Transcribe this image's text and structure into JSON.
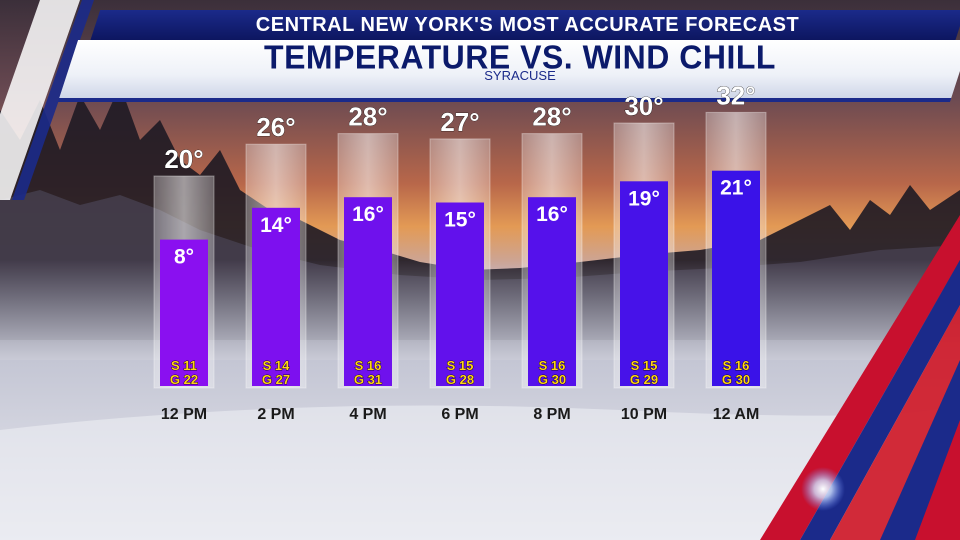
{
  "header": {
    "tagline": "CENTRAL NEW YORK'S MOST ACCURATE FORECAST",
    "title": "TEMPERATURE VS. WIND CHILL",
    "location": "SYRACUSE"
  },
  "colors": {
    "banner_blue": "#1b2a8a",
    "title_blue": "#0b1a6b",
    "windchill_purple": "#8a10f0",
    "windchill_blue": "#3a12e8",
    "wind_text_yellow": "#ffd21a",
    "accent_red": "#d0202e"
  },
  "chart_data": {
    "type": "bar",
    "categories": [
      "12 PM",
      "2 PM",
      "4 PM",
      "6 PM",
      "8 PM",
      "10 PM",
      "12 AM"
    ],
    "series": [
      {
        "name": "Temperature",
        "values": [
          20,
          26,
          28,
          27,
          28,
          30,
          32
        ]
      },
      {
        "name": "Wind Chill",
        "values": [
          8,
          14,
          16,
          15,
          16,
          19,
          21
        ]
      }
    ],
    "value_labels": {
      "temperature": [
        "20°",
        "26°",
        "28°",
        "27°",
        "28°",
        "30°",
        "32°"
      ],
      "wind_chill": [
        "8°",
        "14°",
        "16°",
        "15°",
        "16°",
        "19°",
        "21°"
      ]
    },
    "wind": [
      {
        "sustained": "S 11",
        "gust": "G 22"
      },
      {
        "sustained": "S 14",
        "gust": "G 27"
      },
      {
        "sustained": "S 16",
        "gust": "G 31"
      },
      {
        "sustained": "S 15",
        "gust": "G 28"
      },
      {
        "sustained": "S 16",
        "gust": "G 30"
      },
      {
        "sustained": "S 15",
        "gust": "G 29"
      },
      {
        "sustained": "S 16",
        "gust": "G 30"
      }
    ],
    "ylim": [
      -20,
      32
    ],
    "title": "",
    "xlabel": "",
    "ylabel": ""
  }
}
